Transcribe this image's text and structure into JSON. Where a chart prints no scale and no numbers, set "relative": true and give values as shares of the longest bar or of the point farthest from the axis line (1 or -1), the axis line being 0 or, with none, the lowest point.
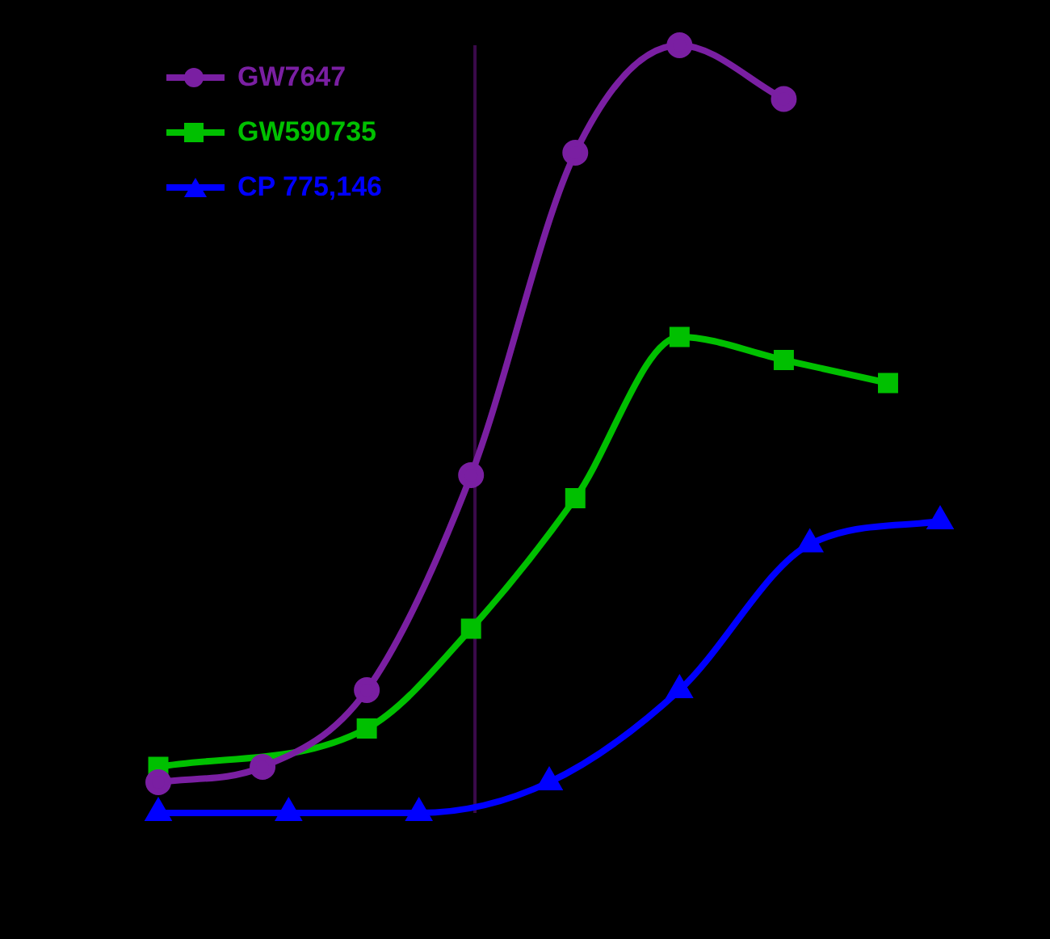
{
  "chart_data": {
    "type": "line",
    "relative": true,
    "categories": [
      null,
      null,
      null,
      null,
      null,
      null,
      null,
      null,
      null,
      null,
      null,
      null,
      null,
      null,
      null,
      null,
      null,
      null,
      null,
      null,
      null,
      null,
      null,
      null,
      null,
      null,
      null,
      null,
      null,
      null,
      null
    ],
    "legend": "top left",
    "grid": false,
    "series": [
      {
        "name": "GW7647",
        "color": "#7a1fa2",
        "marker": "circle",
        "values": [
          0.04,
          null,
          null,
          null,
          0.06,
          null,
          null,
          null,
          0.16,
          null,
          null,
          null,
          0.44,
          null,
          null,
          null,
          0.86,
          null,
          null,
          null,
          1.0,
          null,
          null,
          null,
          0.93,
          null,
          null,
          null,
          null,
          null,
          null
        ]
      },
      {
        "name": "GW590735",
        "color": "#00c000",
        "marker": "square",
        "values": [
          0.06,
          null,
          null,
          null,
          null,
          null,
          null,
          null,
          0.11,
          null,
          null,
          null,
          0.24,
          null,
          null,
          null,
          0.41,
          null,
          null,
          null,
          0.62,
          null,
          null,
          null,
          0.59,
          null,
          null,
          null,
          0.56,
          null,
          null
        ]
      },
      {
        "name": "CP 775,146",
        "color": "#0000ff",
        "marker": "triangle",
        "values": [
          0,
          null,
          null,
          null,
          null,
          0,
          null,
          null,
          null,
          null,
          0,
          null,
          null,
          null,
          null,
          0.04,
          null,
          null,
          null,
          null,
          0.16,
          null,
          null,
          null,
          null,
          0.35,
          null,
          null,
          null,
          null,
          0.38
        ]
      }
    ]
  }
}
